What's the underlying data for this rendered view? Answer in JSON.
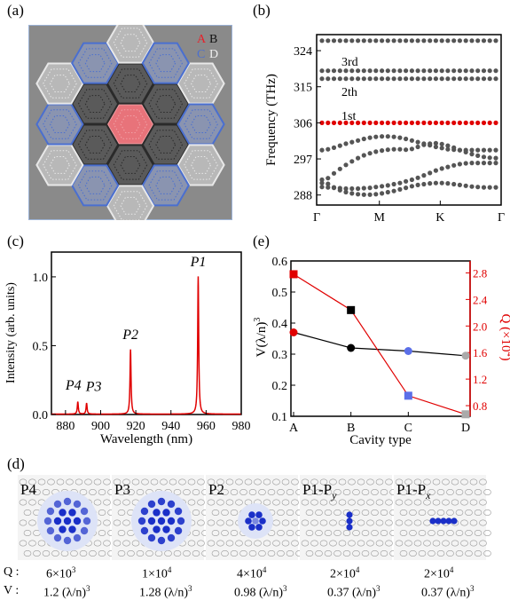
{
  "panels": {
    "a": "(a)",
    "b": "(b)",
    "c": "(c)",
    "d": "(d)",
    "e": "(e)"
  },
  "legend_a": {
    "A": "A",
    "B": "B",
    "C": "C",
    "D": "D"
  },
  "colors": {
    "A": "#e8505b",
    "B": "#3a3a3a",
    "C": "#5b7fc0",
    "D": "#e8e8e8",
    "accent_red": "#e00000",
    "dot": "#555555",
    "bg_a": "#8a8a8a"
  },
  "chart_data": [
    {
      "type": "scatter",
      "panel": "b",
      "ylabel": "Frequency (THz)",
      "yticks": [
        "324",
        "315",
        "306",
        "297",
        "288"
      ],
      "ytick_values": [
        324,
        315,
        306,
        297,
        288
      ],
      "ylim": [
        285.5,
        328
      ],
      "xticks": [
        "Γ",
        "M",
        "K",
        "Γ"
      ],
      "band_labels": [
        "3rd",
        "2th",
        "1st"
      ],
      "bands": [
        {
          "name": "upper",
          "y": [
            326.5,
            326.5,
            326.5,
            326.5,
            326.5,
            326.5,
            326.5,
            326.5,
            326.5,
            326.5,
            326.5,
            326.5,
            326.5,
            326.5,
            326.5,
            326.5,
            326.5,
            326.5,
            326.5,
            326.5,
            326.5,
            326.5,
            326.5,
            326.5,
            326.5,
            326.5,
            326.5,
            326.5,
            326.5,
            326.5
          ]
        },
        {
          "name": "3rd",
          "y": [
            319,
            319,
            319,
            319,
            319,
            319,
            319,
            319,
            319,
            319,
            319,
            319,
            319,
            319,
            319,
            319,
            319,
            319,
            319,
            319,
            319,
            319,
            319,
            319,
            319,
            319,
            319,
            319,
            319,
            319
          ]
        },
        {
          "name": "2th",
          "y": [
            317,
            317,
            317,
            317,
            317,
            317,
            317,
            317,
            317,
            317,
            317,
            317,
            317,
            317,
            317,
            317,
            317,
            317,
            317,
            317,
            317,
            317,
            317,
            317,
            317,
            317,
            317,
            317,
            317,
            317
          ]
        },
        {
          "name": "1st",
          "y": [
            306,
            306,
            306,
            306,
            306,
            306,
            306,
            306,
            306,
            306,
            306,
            306,
            306,
            306,
            306,
            306,
            306,
            306,
            306,
            306,
            306,
            306,
            306,
            306,
            306,
            306,
            306,
            306,
            306,
            306
          ]
        },
        {
          "name": "b1",
          "y": [
            299.2,
            299.4,
            299.8,
            300.3,
            300.8,
            301.2,
            301.6,
            302,
            302.3,
            302.5,
            302.6,
            302.6,
            302.5,
            302.3,
            302,
            301.6,
            301.2,
            300.8,
            300.4,
            300,
            299.7,
            299.4,
            299.3,
            299.2,
            299.2,
            299.2,
            299.2,
            299.2,
            299.2,
            299.2
          ]
        },
        {
          "name": "b2",
          "y": [
            291,
            292.2,
            293.4,
            294.5,
            295.5,
            296.4,
            297.2,
            297.9,
            298.4,
            298.8,
            299.1,
            299.3,
            299.4,
            299.4,
            299.3,
            299.5,
            300,
            300.5,
            300.8,
            300.9,
            300.7,
            300.3,
            299.8,
            299.2,
            298.7,
            298.2,
            297.8,
            297.5,
            297.3,
            297.2
          ]
        },
        {
          "name": "b3",
          "y": [
            290,
            289.9,
            289.8,
            289.7,
            289.6,
            289.6,
            289.6,
            289.7,
            289.8,
            290,
            290.2,
            290.4,
            290.7,
            291,
            291.4,
            291.8,
            292.3,
            292.9,
            293.5,
            294.1,
            294.6,
            295,
            295.4,
            295.7,
            295.9,
            296,
            296,
            296,
            296,
            296
          ]
        },
        {
          "name": "b4",
          "y": [
            291.8,
            290.8,
            289.9,
            289.2,
            288.7,
            288.4,
            288.2,
            288.1,
            288.1,
            288.2,
            288.4,
            288.7,
            289,
            289.4,
            289.8,
            290.2,
            290.5,
            290.7,
            290.9,
            291,
            291,
            290.9,
            290.7,
            290.5,
            290.3,
            290.1,
            290,
            289.9,
            289.9,
            289.9
          ]
        }
      ]
    },
    {
      "type": "line",
      "panel": "c",
      "ylabel": "Intensity (arb. units)",
      "xlabel": "Wavelength (nm)",
      "xticks": [
        "880",
        "900",
        "920",
        "940",
        "960",
        "980"
      ],
      "xtick_values": [
        880,
        900,
        920,
        940,
        960,
        980
      ],
      "yticks": [
        "0.0",
        "0.5",
        "1.0"
      ],
      "ytick_values": [
        0,
        0.5,
        1.0
      ],
      "xlim": [
        872,
        980
      ],
      "ylim": [
        0,
        1.18
      ],
      "peaks": [
        {
          "label": "P4",
          "x": 887,
          "y": 0.09
        },
        {
          "label": "P3",
          "x": 892,
          "y": 0.08
        },
        {
          "label": "P2",
          "x": 917,
          "y": 0.47
        },
        {
          "label": "P1",
          "x": 955.5,
          "y": 1.0
        }
      ]
    },
    {
      "type": "line",
      "panel": "e",
      "categories": [
        "A",
        "B",
        "C",
        "D"
      ],
      "xlabel": "Cavity type",
      "ylabel_left": "V(λ/n)",
      "ylabel_left_sup": "3",
      "ylabel_right": "Q (×10",
      "ylabel_right_sup": "4",
      "ylabel_right_end": ")",
      "yticks_left": [
        "0.1",
        "0.2",
        "0.3",
        "0.4",
        "0.5",
        "0.6"
      ],
      "ytick_left_values": [
        0.1,
        0.2,
        0.3,
        0.4,
        0.5,
        0.6
      ],
      "ylim_left": [
        0.1,
        0.6
      ],
      "yticks_right": [
        "0.8",
        "1.2",
        "1.6",
        "2.0",
        "2.4",
        "2.8"
      ],
      "ytick_right_values": [
        0.8,
        1.2,
        1.6,
        2.0,
        2.4,
        2.8
      ],
      "ylim_right": [
        0.64,
        2.98
      ],
      "series": [
        {
          "axis": "left",
          "values": [
            0.37,
            0.32,
            0.31,
            0.295
          ],
          "marker": "circle",
          "line_color": "#000000"
        },
        {
          "axis": "right",
          "values": [
            2.78,
            2.24,
            0.95,
            0.67
          ],
          "marker": "square",
          "line_color": "#e00000"
        }
      ]
    }
  ],
  "panel_d": {
    "modes": [
      "P4",
      "P3",
      "P2",
      "P1-P",
      "P1-P"
    ],
    "mode_subs": [
      "",
      "",
      "",
      "y",
      "x"
    ],
    "q_label": "Q :",
    "v_label": "V :",
    "q_values": [
      "6×10",
      "1×10",
      "4×10",
      "2×10",
      "2×10"
    ],
    "q_exps": [
      "3",
      "4",
      "4",
      "4",
      "4"
    ],
    "v_values": [
      "1.2 (λ/n)",
      "1.28 (λ/n)",
      "0.98 (λ/n)",
      "0.37 (λ/n)",
      "0.37 (λ/n)"
    ],
    "v_exps": [
      "3",
      "3",
      "3",
      "3",
      "3"
    ]
  }
}
